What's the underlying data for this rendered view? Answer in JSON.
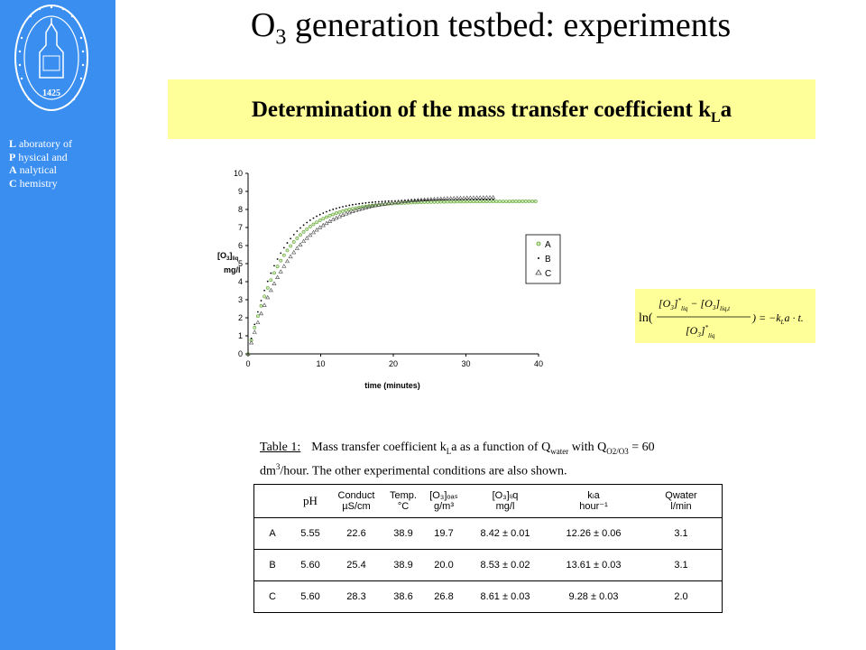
{
  "sidebar": {
    "seal_year": "1425",
    "lab_lines": [
      {
        "initial": "L",
        "rest": " aboratory of"
      },
      {
        "initial": "P",
        "rest": " hysical and"
      },
      {
        "initial": "A",
        "rest": " nalytical"
      },
      {
        "initial": "C",
        "rest": " hemistry"
      }
    ]
  },
  "title": {
    "pre": "O",
    "sub": "3",
    "post": " generation testbed: experiments"
  },
  "banner": {
    "pre": "Determination of the mass transfer coefficient k",
    "sub": "L",
    "post": "a"
  },
  "chart_data": {
    "type": "scatter",
    "xlabel": "time (minutes)",
    "ylabel_main": "[O",
    "ylabel_sub1": "3",
    "ylabel_tail": "]",
    "ylabel_sub2": "liq",
    "ylabel_unit": "mg/l",
    "xlim": [
      0,
      40
    ],
    "ylim": [
      0,
      10
    ],
    "xticks": [
      0,
      10,
      20,
      30,
      40
    ],
    "yticks": [
      0,
      1,
      2,
      3,
      4,
      5,
      6,
      7,
      8,
      9,
      10
    ],
    "legend_position": "right",
    "series": [
      {
        "name": "A",
        "marker": "circle",
        "color": "#5aa02c",
        "x_end": 40,
        "plateau": 8.45,
        "k": 0.21
      },
      {
        "name": "B",
        "marker": "dot",
        "color": "#000000",
        "x_end": 34,
        "plateau": 8.55,
        "k": 0.235
      },
      {
        "name": "C",
        "marker": "triangle",
        "color": "#444444",
        "x_end": 34,
        "plateau": 8.7,
        "k": 0.165
      }
    ]
  },
  "formula": {
    "ln": "ln(",
    "num_a": "[O",
    "num_a_sub": "3",
    "num_a_close": "]",
    "num_a_sup": "*",
    "num_a_subliq": "liq",
    "minus": " − ",
    "num_b": "[O",
    "num_b_sub": "3",
    "num_b_close": "]",
    "num_b_subliq": "liq,t",
    "den": "[O",
    "den_sub": "3",
    "den_close": "]",
    "den_sup": "*",
    "den_subliq": "liq",
    "rhs": ") = −k",
    "rhs_sub": "L",
    "rhs_tail": "a · t."
  },
  "table_caption": {
    "label": "Table 1:",
    "text1": "Mass transfer coefficient k",
    "text1_sub": "L",
    "text2": "a as a function of Q",
    "text2_sub": "water",
    "text3": " with Q",
    "text3_sub": "O2/O3",
    "text4": " = 60",
    "line2a": "dm",
    "line2_sup": "3",
    "line2b": "/hour. The other experimental conditions are also shown."
  },
  "table": {
    "headers": [
      {
        "l1": "",
        "l2": ""
      },
      {
        "l1": "pH",
        "l2": ""
      },
      {
        "l1": "Conduct",
        "l2": "µS/cm"
      },
      {
        "l1": "Temp.",
        "l2": "°C"
      },
      {
        "l1": "[O₃]ₒₐₛ",
        "l2": "g/m³"
      },
      {
        "l1": "[O₃]ₗᵢq",
        "l2": "mg/l"
      },
      {
        "l1": "kₗa",
        "l2": "hour⁻¹"
      },
      {
        "l1": "Qwater",
        "l2": "l/min"
      }
    ],
    "rows": [
      [
        "A",
        "5.55",
        "22.6",
        "38.9",
        "19.7",
        "8.42 ± 0.01",
        "12.26 ± 0.06",
        "3.1"
      ],
      [
        "B",
        "5.60",
        "25.4",
        "38.9",
        "20.0",
        "8.53 ± 0.02",
        "13.61 ± 0.03",
        "3.1"
      ],
      [
        "C",
        "5.60",
        "28.3",
        "38.6",
        "26.8",
        "8.61 ± 0.03",
        "9.28 ± 0.03",
        "2.0"
      ]
    ]
  }
}
